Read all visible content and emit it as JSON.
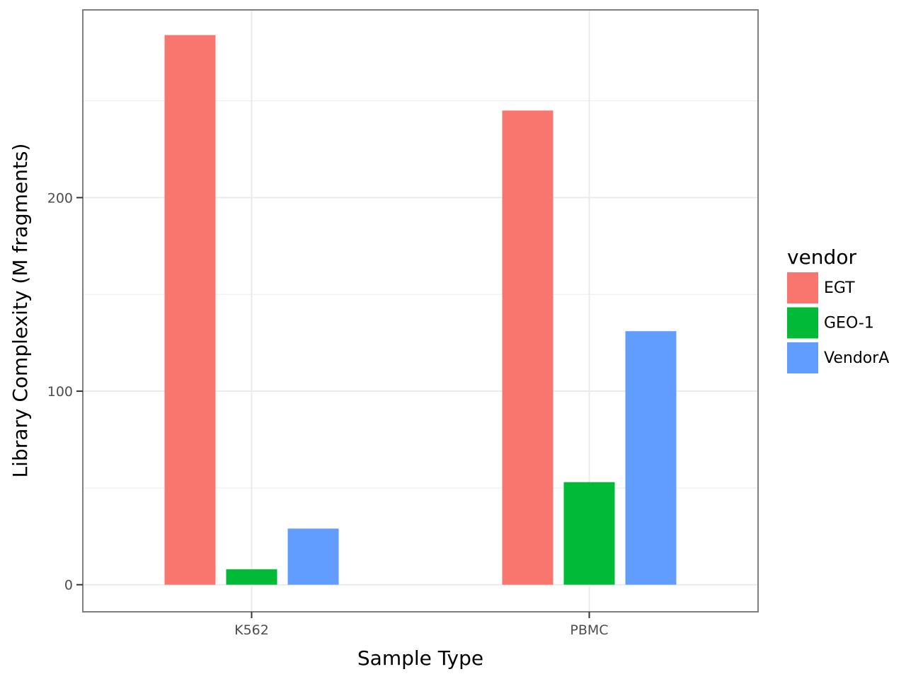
{
  "chart_data": {
    "type": "bar",
    "title": "",
    "xlabel": "Sample Type",
    "ylabel": "Library Complexity (M fragments)",
    "categories": [
      "K562",
      "PBMC"
    ],
    "series": [
      {
        "name": "EGT",
        "color": "#F8766D",
        "values": [
          284,
          245
        ]
      },
      {
        "name": "GEO-1",
        "color": "#00BA38",
        "values": [
          8,
          53
        ]
      },
      {
        "name": "VendorA",
        "color": "#619CFF",
        "values": [
          29,
          131
        ]
      }
    ],
    "ylim": [
      -14,
      297
    ],
    "yticks": [
      0,
      100,
      200
    ],
    "yminor": [
      50,
      150,
      250
    ],
    "grid": true,
    "legend": {
      "title": "vendor",
      "position": "right"
    }
  }
}
